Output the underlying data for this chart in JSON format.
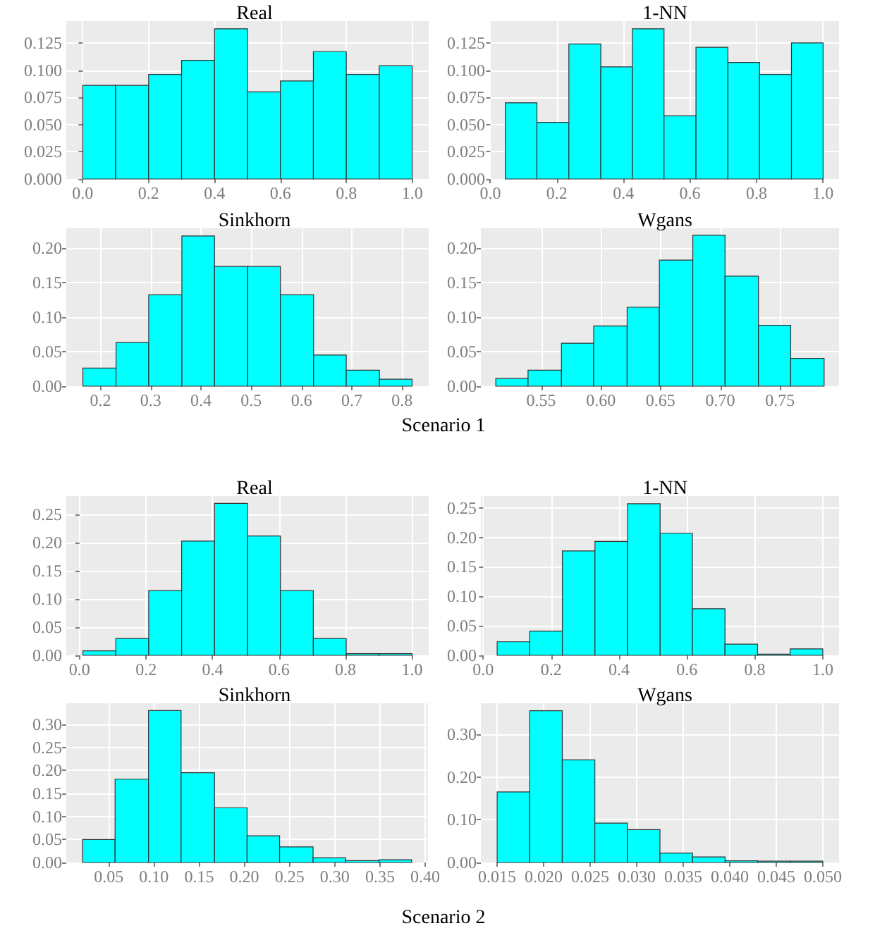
{
  "chart_data": [
    {
      "type": "histogram",
      "title": "Real",
      "color": "#00ffff",
      "grid": true,
      "bins": [
        0.0,
        0.1,
        0.2,
        0.3,
        0.4,
        0.5,
        0.6,
        0.7,
        0.8,
        0.9,
        1.0
      ],
      "values": [
        0.086,
        0.086,
        0.096,
        0.109,
        0.138,
        0.08,
        0.09,
        0.117,
        0.096,
        0.104
      ],
      "xlim": [
        -0.05,
        1.05
      ],
      "ylim": [
        0,
        0.145
      ],
      "xticks": [
        {
          "value": 0,
          "label": "0.0"
        },
        0.2,
        0.4,
        0.6,
        0.8,
        {
          "value": 1,
          "label": "1.0"
        }
      ],
      "yticks": [
        {
          "value": 0,
          "label": "0.000"
        },
        {
          "value": 0.025,
          "label": "0.025"
        },
        {
          "value": 0.05,
          "label": "0.050"
        },
        {
          "value": 0.075,
          "label": "0.075"
        },
        {
          "value": 0.1,
          "label": "0.100"
        },
        {
          "value": 0.125,
          "label": "0.125"
        }
      ]
    },
    {
      "type": "histogram",
      "title": "1-NN",
      "color": "#00ffff",
      "grid": true,
      "bins": [
        0.045,
        0.14,
        0.236,
        0.332,
        0.427,
        0.522,
        0.618,
        0.714,
        0.809,
        0.905,
        1.0
      ],
      "values": [
        0.07,
        0.052,
        0.124,
        0.103,
        0.138,
        0.058,
        0.121,
        0.107,
        0.096,
        0.125
      ],
      "xlim": [
        -0.003,
        1.048
      ],
      "ylim": [
        0,
        0.145
      ],
      "xticks": [
        {
          "value": 0,
          "label": "0.0"
        },
        0.2,
        0.4,
        0.6,
        0.8,
        {
          "value": 1,
          "label": "1.0"
        }
      ],
      "yticks": [
        {
          "value": 0,
          "label": "0.000"
        },
        {
          "value": 0.025,
          "label": "0.025"
        },
        {
          "value": 0.05,
          "label": "0.050"
        },
        {
          "value": 0.075,
          "label": "0.075"
        },
        {
          "value": 0.1,
          "label": "0.100"
        },
        {
          "value": 0.125,
          "label": "0.125"
        }
      ]
    },
    {
      "type": "histogram",
      "title": "Sinkhorn",
      "color": "#00ffff",
      "grid": true,
      "bins": [
        0.165,
        0.231,
        0.296,
        0.362,
        0.427,
        0.493,
        0.558,
        0.624,
        0.689,
        0.755,
        0.82
      ],
      "values": [
        0.026,
        0.063,
        0.132,
        0.217,
        0.173,
        0.173,
        0.132,
        0.045,
        0.023,
        0.01
      ],
      "xlim": [
        0.132,
        0.853
      ],
      "ylim": [
        0,
        0.228
      ],
      "xticks": [
        0.2,
        0.3,
        0.4,
        0.5,
        0.6,
        0.7,
        0.8
      ],
      "yticks": [
        {
          "value": 0,
          "label": "0.00"
        },
        0.05,
        {
          "value": 0.1,
          "label": "0.10"
        },
        0.15,
        {
          "value": 0.2,
          "label": "0.20"
        }
      ],
      "annotations": [
        "Scenario 1"
      ]
    },
    {
      "type": "histogram",
      "title": "Wgans",
      "color": "#00ffff",
      "grid": true,
      "bins": [
        0.512,
        0.539,
        0.567,
        0.594,
        0.622,
        0.649,
        0.677,
        0.704,
        0.732,
        0.759,
        0.787
      ],
      "values": [
        0.011,
        0.023,
        0.062,
        0.087,
        0.114,
        0.182,
        0.218,
        0.159,
        0.088,
        0.04
      ],
      "xlim": [
        0.4995,
        0.7995
      ],
      "ylim": [
        0,
        0.228
      ],
      "xticks": [
        0.55,
        {
          "value": 0.6,
          "label": "0.60"
        },
        0.65,
        {
          "value": 0.7,
          "label": "0.70"
        },
        0.75
      ],
      "yticks": [
        {
          "value": 0,
          "label": "0.00"
        },
        0.05,
        {
          "value": 0.1,
          "label": "0.10"
        },
        0.15,
        {
          "value": 0.2,
          "label": "0.20"
        }
      ]
    },
    {
      "type": "histogram",
      "title": "Real",
      "color": "#00ffff",
      "grid": true,
      "bins": [
        0.01,
        0.109,
        0.208,
        0.307,
        0.406,
        0.505,
        0.604,
        0.703,
        0.802,
        0.901,
        1.0
      ],
      "values": [
        0.008,
        0.03,
        0.115,
        0.203,
        0.27,
        0.212,
        0.115,
        0.03,
        0.003,
        0.003
      ],
      "xlim": [
        -0.04,
        1.05
      ],
      "ylim": [
        0,
        0.283
      ],
      "xticks": [
        {
          "value": 0,
          "label": "0.0"
        },
        0.2,
        0.4,
        0.6,
        0.8,
        {
          "value": 1,
          "label": "1.0"
        }
      ],
      "yticks": [
        {
          "value": 0,
          "label": "0.00"
        },
        0.05,
        {
          "value": 0.1,
          "label": "0.10"
        },
        0.15,
        {
          "value": 0.2,
          "label": "0.20"
        },
        0.25
      ]
    },
    {
      "type": "histogram",
      "title": "1-NN",
      "color": "#00ffff",
      "grid": true,
      "bins": [
        0.041,
        0.137,
        0.233,
        0.329,
        0.425,
        0.521,
        0.616,
        0.712,
        0.808,
        0.904,
        1.0
      ],
      "values": [
        0.023,
        0.041,
        0.177,
        0.193,
        0.257,
        0.207,
        0.079,
        0.019,
        0.002,
        0.011
      ],
      "xlim": [
        -0.007,
        1.048
      ],
      "ylim": [
        0,
        0.27
      ],
      "xticks": [
        {
          "value": 0,
          "label": "0.0"
        },
        0.2,
        0.4,
        0.6,
        0.8,
        {
          "value": 1,
          "label": "1.0"
        }
      ],
      "yticks": [
        {
          "value": 0,
          "label": "0.00"
        },
        0.05,
        {
          "value": 0.1,
          "label": "0.10"
        },
        0.15,
        {
          "value": 0.2,
          "label": "0.20"
        },
        0.25
      ]
    },
    {
      "type": "histogram",
      "title": "Sinkhorn",
      "color": "#00ffff",
      "grid": true,
      "bins": [
        0.021,
        0.057,
        0.094,
        0.13,
        0.167,
        0.203,
        0.239,
        0.276,
        0.312,
        0.349,
        0.385
      ],
      "values": [
        0.05,
        0.181,
        0.33,
        0.195,
        0.119,
        0.058,
        0.034,
        0.01,
        0.004,
        0.006
      ],
      "xlim": [
        0.003,
        0.403
      ],
      "ylim": [
        0,
        0.346
      ],
      "xticks": [
        0.05,
        {
          "value": 0.1,
          "label": "0.10"
        },
        0.15,
        {
          "value": 0.2,
          "label": "0.20"
        },
        0.25,
        {
          "value": 0.3,
          "label": "0.30"
        },
        0.35,
        {
          "value": 0.4,
          "label": "0.40"
        }
      ],
      "yticks": [
        {
          "value": 0,
          "label": "0.00"
        },
        0.05,
        {
          "value": 0.1,
          "label": "0.10"
        },
        0.15,
        {
          "value": 0.2,
          "label": "0.20"
        },
        0.25,
        {
          "value": 0.3,
          "label": "0.30"
        }
      ],
      "annotations": [
        "Scenario 2"
      ]
    },
    {
      "type": "histogram",
      "title": "Wgans",
      "color": "#00ffff",
      "grid": true,
      "bins": [
        0.015,
        0.0185,
        0.022,
        0.0255,
        0.029,
        0.0325,
        0.036,
        0.0395,
        0.043,
        0.0465,
        0.05
      ],
      "values": [
        0.165,
        0.355,
        0.24,
        0.092,
        0.077,
        0.022,
        0.013,
        0.004,
        0.003,
        0.003
      ],
      "xlim": [
        0.01325,
        0.05175
      ],
      "ylim": [
        0,
        0.3725
      ],
      "xticks": [
        0.015,
        {
          "value": 0.02,
          "label": "0.020"
        },
        0.025,
        {
          "value": 0.03,
          "label": "0.030"
        },
        0.035,
        {
          "value": 0.04,
          "label": "0.040"
        },
        0.045,
        {
          "value": 0.05,
          "label": "0.050"
        }
      ],
      "yticks": [
        {
          "value": 0,
          "label": "0.00"
        },
        {
          "value": 0.1,
          "label": "0.10"
        },
        {
          "value": 0.2,
          "label": "0.20"
        },
        {
          "value": 0.3,
          "label": "0.30"
        }
      ]
    }
  ]
}
